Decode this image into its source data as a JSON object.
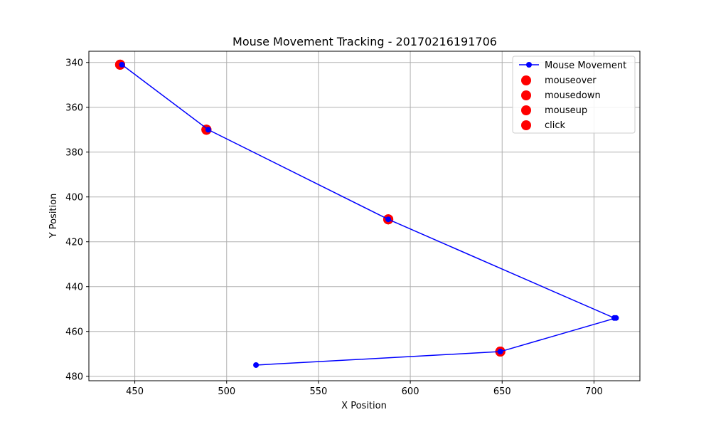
{
  "chart_data": {
    "type": "line",
    "title": "Mouse Movement Tracking - 20170216191706",
    "xlabel": "X Position",
    "ylabel": "Y Position",
    "xlim": [
      425,
      725
    ],
    "ylim": [
      335,
      482
    ],
    "y_inverted": true,
    "grid": true,
    "legend_position": "top-right",
    "xticks": [
      450,
      500,
      550,
      600,
      650,
      700
    ],
    "yticks": [
      340,
      360,
      380,
      400,
      420,
      440,
      460,
      480
    ],
    "line_series": {
      "name": "Mouse Movement",
      "color": "#0000ff",
      "x": [
        443,
        490,
        588,
        711,
        712,
        649,
        516
      ],
      "y": [
        341,
        370,
        410,
        454,
        454,
        469,
        475
      ]
    },
    "event_series": [
      {
        "name": "mouseover",
        "color": "#ff0000",
        "x": [
          442,
          489,
          588,
          649
        ],
        "y": [
          341,
          370,
          410,
          469
        ]
      },
      {
        "name": "mousedown",
        "color": "#ff0000",
        "x": [
          442,
          489,
          588,
          649
        ],
        "y": [
          341,
          370,
          410,
          469
        ]
      },
      {
        "name": "mouseup",
        "color": "#ff0000",
        "x": [
          442,
          489,
          588,
          649
        ],
        "y": [
          341,
          370,
          410,
          469
        ]
      },
      {
        "name": "click",
        "color": "#ff0000",
        "x": [
          442,
          489,
          588,
          649
        ],
        "y": [
          341,
          370,
          410,
          469
        ]
      }
    ]
  }
}
